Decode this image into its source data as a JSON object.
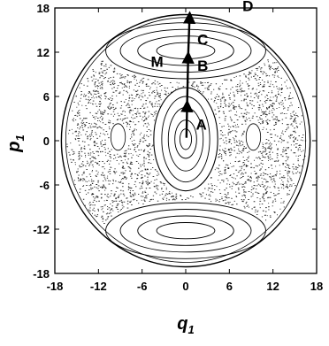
{
  "chart_data": {
    "type": "scatter",
    "title": "",
    "xlabel": "q",
    "xlabel_sub": "1",
    "ylabel": "p",
    "ylabel_sub": "1",
    "xlim": [
      -18,
      18
    ],
    "ylim": [
      -18,
      18
    ],
    "x_ticks": [
      -18,
      -12,
      -6,
      0,
      6,
      12,
      18
    ],
    "y_ticks": [
      -18,
      -12,
      -6,
      0,
      6,
      12,
      18
    ],
    "x_tick_labels": [
      "-18",
      "-12",
      "-6",
      "0",
      "6",
      "12",
      "18"
    ],
    "y_tick_labels": [
      "-18",
      "-12",
      "-6",
      "0",
      "6",
      "12",
      "18"
    ],
    "grid": false,
    "annotations": [
      {
        "text": "A",
        "x": 1.4,
        "y": 1.5
      },
      {
        "text": "B",
        "x": 1.6,
        "y": 9.5
      },
      {
        "text": "C",
        "x": 1.6,
        "y": 13.0
      },
      {
        "text": "M",
        "x": -4.8,
        "y": 10.0
      },
      {
        "text": "D",
        "x": 7.8,
        "y": 17.6
      }
    ],
    "arrow_path": [
      [
        0.1,
        0.4
      ],
      [
        0.2,
        5.3
      ],
      [
        0.35,
        11.9
      ],
      [
        0.55,
        17.3
      ]
    ],
    "outer_boundary_radius": 17.1
  }
}
